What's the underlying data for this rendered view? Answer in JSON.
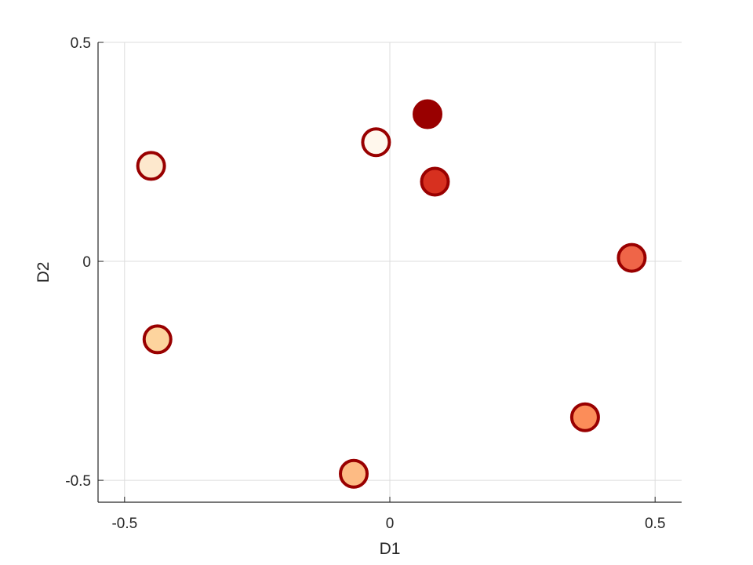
{
  "chart_data": {
    "type": "scatter",
    "title": "",
    "xlabel": "D1",
    "ylabel": "D2",
    "xlim": [
      -0.55,
      0.55
    ],
    "ylim": [
      -0.55,
      0.5
    ],
    "grid": true,
    "x_ticks": [
      -0.5,
      0,
      0.5
    ],
    "x_tick_labels": [
      "-0.5",
      "0",
      "0.5"
    ],
    "y_ticks": [
      -0.5,
      0,
      0.5
    ],
    "y_tick_labels": [
      "-0.5",
      "0",
      "0.5"
    ],
    "marker_edge_color": "#990000",
    "points": [
      {
        "x": -0.45,
        "y": 0.218,
        "color": "#fde8cd"
      },
      {
        "x": -0.438,
        "y": -0.178,
        "color": "#fdd49e"
      },
      {
        "x": -0.068,
        "y": -0.485,
        "color": "#fdbb84"
      },
      {
        "x": -0.026,
        "y": 0.272,
        "color": "#fff7ec"
      },
      {
        "x": 0.071,
        "y": 0.336,
        "color": "#990000"
      },
      {
        "x": 0.085,
        "y": 0.182,
        "color": "#d7301f"
      },
      {
        "x": 0.368,
        "y": -0.356,
        "color": "#fc8d59"
      },
      {
        "x": 0.456,
        "y": 0.008,
        "color": "#ef6548"
      }
    ]
  }
}
